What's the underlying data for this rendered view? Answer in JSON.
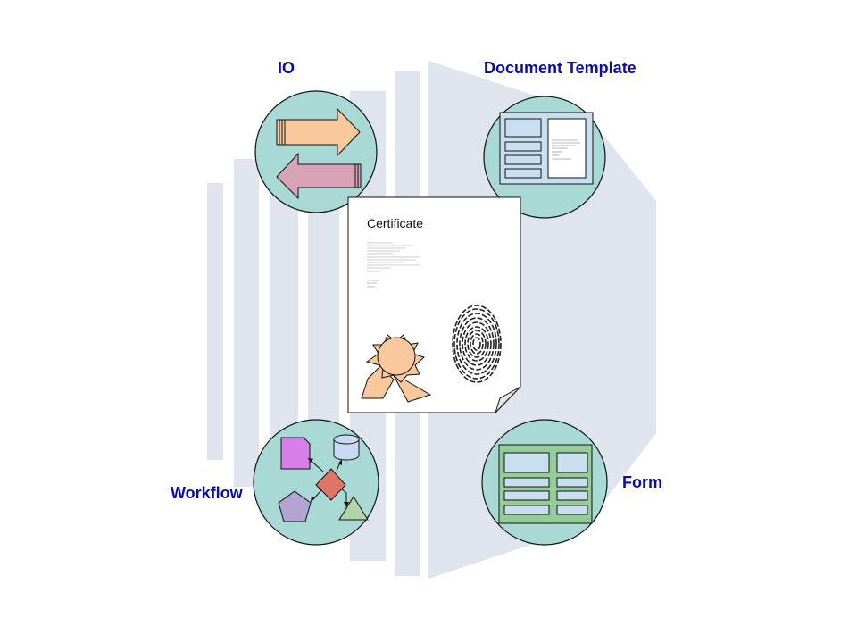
{
  "labels": {
    "io": "IO",
    "document_template": "Document Template",
    "workflow": "Workflow",
    "form": "Form"
  },
  "certificate": {
    "title": "Certificate"
  },
  "colors": {
    "label_text": "#0c0ca8",
    "circle_fill": "#a9d9d4",
    "background_shape": "#dfe4ef",
    "arrow_right": "#f9c89c",
    "arrow_left": "#d8a3b7",
    "seal": "#f9c89c",
    "form_panel": "#93cc96",
    "field_fill": "#c9dff0",
    "wf_page": "#d77ee9",
    "wf_cylinder": "#c9d9f3",
    "wf_diamond": "#df7566",
    "wf_pentagon": "#b3a3d3",
    "wf_triangle": "#b3d3a9"
  },
  "icons": {
    "io": "double-arrow-icon",
    "document_template": "template-page-icon",
    "workflow": "flowchart-icon",
    "form": "form-grid-icon",
    "seal": "award-seal-icon",
    "fingerprint": "fingerprint-icon"
  }
}
